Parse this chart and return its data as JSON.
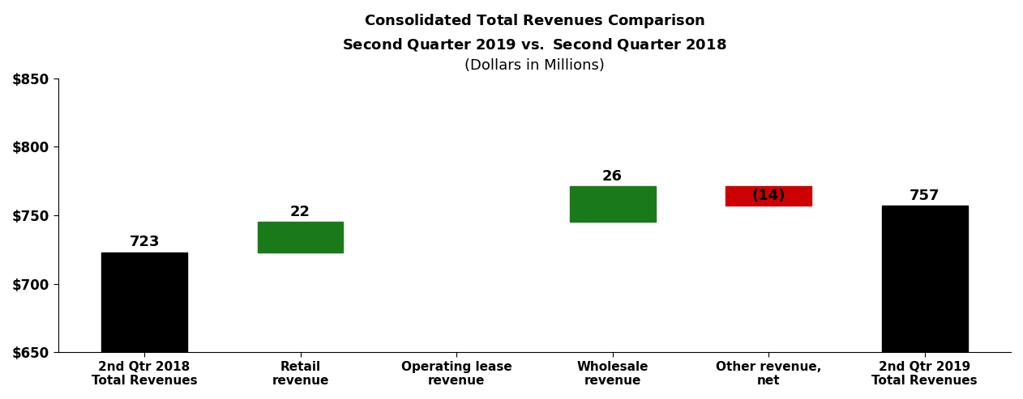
{
  "title_line1": "Consolidated Total Revenues Comparison",
  "title_line2": "Second Quarter 2019 vs. Second Quarter 2018",
  "title_line3": "(Dollars in Millions)",
  "categories": [
    "2nd Qtr 2018\nTotal Revenues",
    "Retail\nrevenue",
    "Operating lease\nrevenue",
    "Wholesale\nrevenue",
    "Other revenue,\nnet",
    "2nd Qtr 2019\nTotal Revenues"
  ],
  "values": [
    723,
    22,
    0,
    26,
    -14,
    757
  ],
  "bar_colors": [
    "#000000",
    "#1a7a1a",
    "#1a7a1a",
    "#1a7a1a",
    "#cc0000",
    "#000000"
  ],
  "bar_bottoms": [
    650,
    723,
    745,
    745,
    757,
    650
  ],
  "bar_heights": [
    73,
    22,
    0,
    26,
    14,
    107
  ],
  "labels": [
    "723",
    "22",
    "",
    "26",
    "(14)",
    "757"
  ],
  "ylim": [
    650,
    850
  ],
  "yticks": [
    650,
    700,
    750,
    800,
    850
  ],
  "ytick_labels": [
    "$650",
    "$700",
    "$750",
    "$800",
    "$850"
  ],
  "background_color": "#ffffff",
  "bar_width": 0.55
}
